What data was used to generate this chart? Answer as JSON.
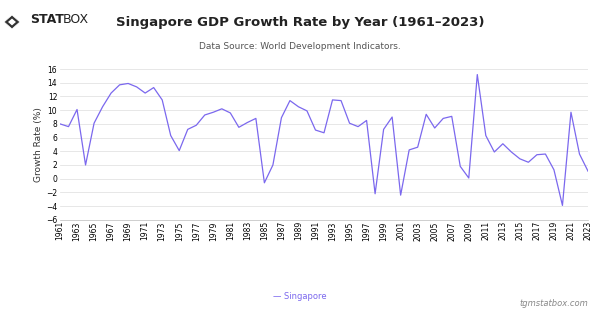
{
  "title": "Singapore GDP Growth Rate by Year (1961–2023)",
  "subtitle": "Data Source: World Development Indicators.",
  "ylabel": "Growth Rate (%)",
  "footer_left": "— Singapore",
  "footer_right": "tgmstatbox.com",
  "line_color": "#7B68EE",
  "bg_color": "#ffffff",
  "plot_bg_color": "#ffffff",
  "grid_color": "#dddddd",
  "ylim": [
    -6,
    16
  ],
  "yticks": [
    -6,
    -4,
    -2,
    0,
    2,
    4,
    6,
    8,
    10,
    12,
    14,
    16
  ],
  "years": [
    1961,
    1962,
    1963,
    1964,
    1965,
    1966,
    1967,
    1968,
    1969,
    1970,
    1971,
    1972,
    1973,
    1974,
    1975,
    1976,
    1977,
    1978,
    1979,
    1980,
    1981,
    1982,
    1983,
    1984,
    1985,
    1986,
    1987,
    1988,
    1989,
    1990,
    1991,
    1992,
    1993,
    1994,
    1995,
    1996,
    1997,
    1998,
    1999,
    2000,
    2001,
    2002,
    2003,
    2004,
    2005,
    2006,
    2007,
    2008,
    2009,
    2010,
    2011,
    2012,
    2013,
    2014,
    2015,
    2016,
    2017,
    2018,
    2019,
    2020,
    2021,
    2022,
    2023
  ],
  "values": [
    8.0,
    7.6,
    10.1,
    2.0,
    8.1,
    10.5,
    12.5,
    13.7,
    13.9,
    13.4,
    12.5,
    13.3,
    11.5,
    6.3,
    4.1,
    7.2,
    7.8,
    9.3,
    9.7,
    10.2,
    9.6,
    7.5,
    8.2,
    8.8,
    -0.6,
    2.0,
    8.9,
    11.4,
    10.5,
    9.9,
    7.1,
    6.7,
    11.5,
    11.4,
    8.1,
    7.6,
    8.5,
    -2.2,
    7.2,
    9.0,
    -2.4,
    4.2,
    4.6,
    9.4,
    7.4,
    8.8,
    9.1,
    1.8,
    0.1,
    15.2,
    6.3,
    3.9,
    5.1,
    3.9,
    2.9,
    2.4,
    3.5,
    3.6,
    1.3,
    -3.9,
    9.7,
    3.6,
    1.1
  ],
  "logo_text": "STATBOX",
  "logo_color": "#222222",
  "title_fontsize": 9.5,
  "subtitle_fontsize": 6.5,
  "ylabel_fontsize": 6.5,
  "tick_fontsize": 5.5,
  "footer_fontsize": 6.0
}
